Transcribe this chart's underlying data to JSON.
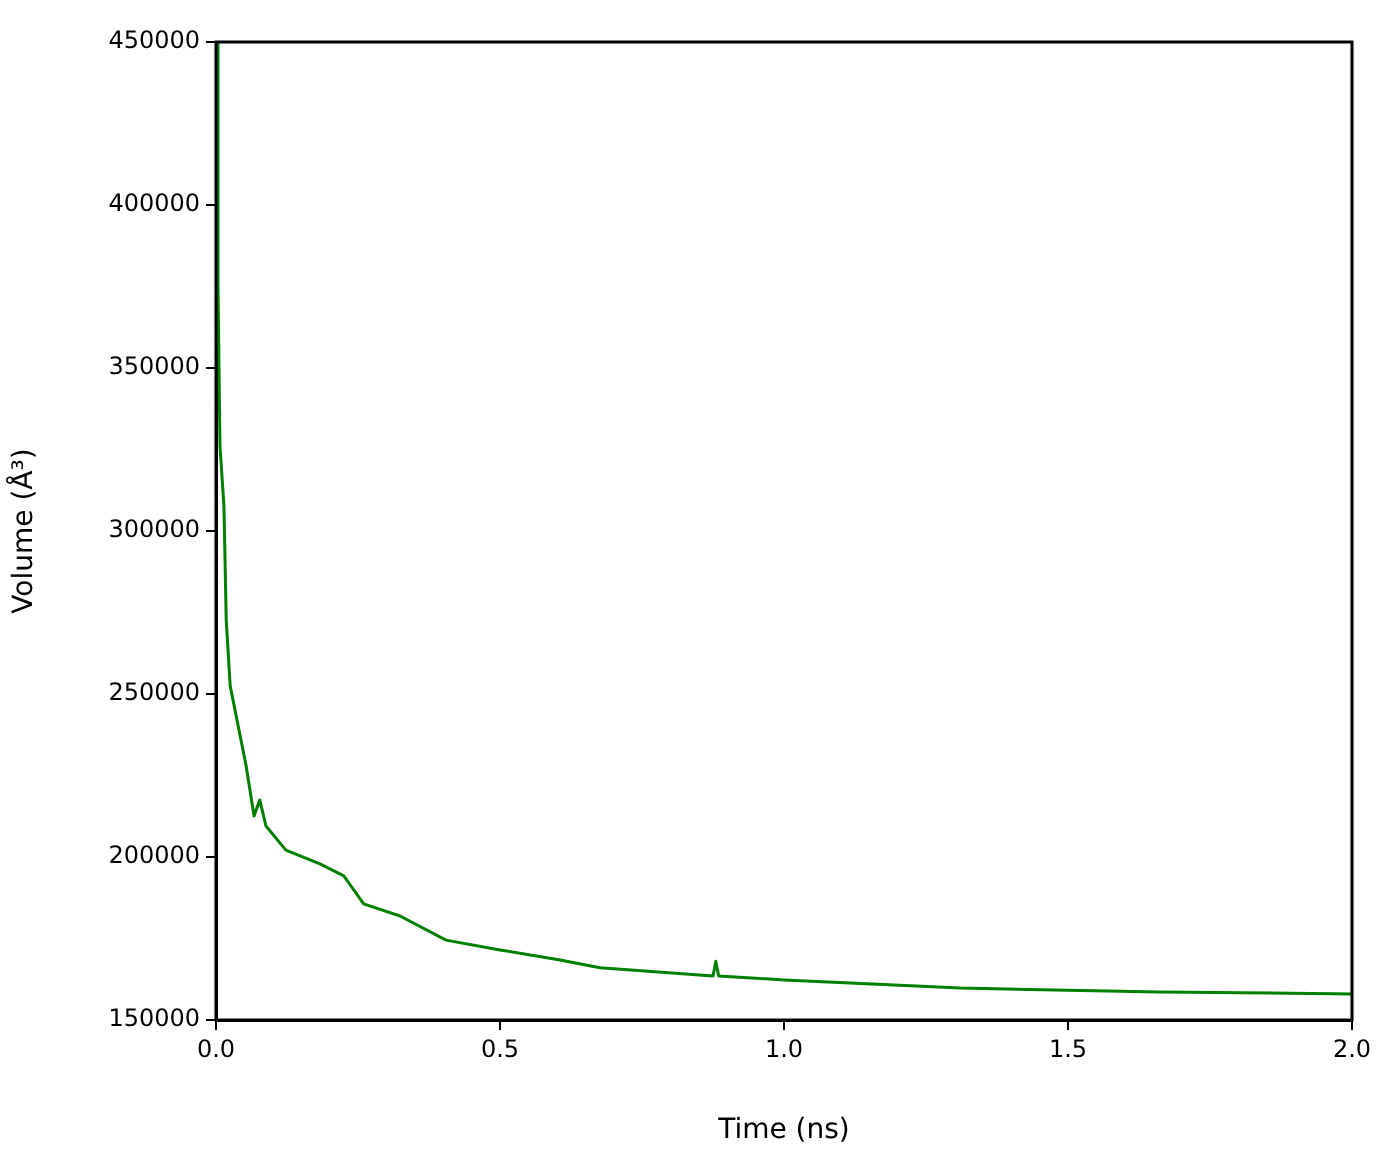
{
  "chart_data": {
    "type": "line",
    "xlabel": "Time (ns)",
    "ylabel": "Volume (Å³)",
    "marker": "none",
    "line_style": "solid",
    "legend": false,
    "xlim": [
      0,
      2
    ],
    "xticks": [
      {
        "value": 0,
        "label": "0.0"
      },
      {
        "value": 0.5,
        "label": "0.5"
      },
      {
        "value": 1,
        "label": "1.0"
      },
      {
        "value": 1.5,
        "label": "1.5"
      },
      {
        "value": 2,
        "label": "2.0"
      }
    ],
    "ylim": [
      150000,
      450000
    ],
    "yticks": [
      150000,
      200000,
      250000,
      300000,
      350000,
      400000,
      450000
    ],
    "series": [
      {
        "color": "#008000",
        "x": [
          0,
          0.0035,
          0.007,
          0.014,
          0.018,
          0.025,
          0.053,
          0.067,
          0.077,
          0.088,
          0.123,
          0.183,
          0.225,
          0.26,
          0.324,
          0.405,
          0.5,
          0.606,
          0.676,
          0.875,
          0.88,
          0.885,
          1.0,
          1.31,
          1.66,
          2.0
        ],
        "values": [
          450000,
          375000,
          326000,
          307700,
          272700,
          252500,
          228000,
          212600,
          217500,
          209500,
          202100,
          197900,
          194200,
          185600,
          181900,
          174500,
          171500,
          168400,
          166000,
          163500,
          168000,
          163500,
          162300,
          159800,
          158600,
          158000
        ]
      }
    ]
  }
}
